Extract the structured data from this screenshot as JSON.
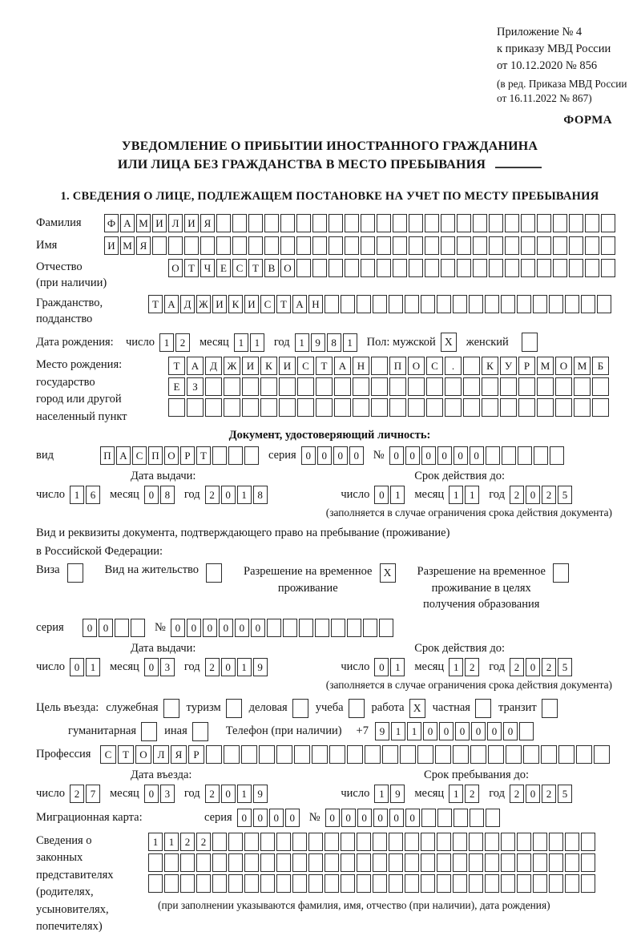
{
  "header": {
    "lines": [
      "Приложение № 4",
      "к приказу МВД России",
      "от 10.12.2020 № 856"
    ],
    "sub_lines": [
      "(в ред. Приказа МВД России",
      "от 16.11.2022 № 867)"
    ],
    "form_label": "ФОРМА"
  },
  "title": {
    "line1": "УВЕДОМЛЕНИЕ О ПРИБЫТИИ ИНОСТРАННОГО ГРАЖДАНИНА",
    "line2": "ИЛИ ЛИЦА БЕЗ ГРАЖДАНСТВА В МЕСТО ПРЕБЫВАНИЯ"
  },
  "section1_heading": "1. СВЕДЕНИЯ О ЛИЦЕ, ПОДЛЕЖАЩЕМ ПОСТАНОВКЕ НА УЧЕТ ПО МЕСТУ ПРЕБЫВАНИЯ",
  "common": {
    "day": "число",
    "month": "месяц",
    "year": "год",
    "series": "серия",
    "number": "№",
    "issue_date": "Дата выдачи:",
    "valid_until": "Срок действия до:",
    "validity_note": "(заполняется в случае ограничения срока действия документа)"
  },
  "surname": {
    "label": "Фамилия",
    "cells": {
      "value": "ФАМИЛИЯ",
      "count": 32
    }
  },
  "given_name": {
    "label": "Имя",
    "cells": {
      "value": "ИМЯ",
      "count": 32
    }
  },
  "patronymic": {
    "label": "Отчество",
    "note": "(при наличии)",
    "cells": {
      "value": "ОТЧЕСТВО",
      "count": 28
    }
  },
  "citizenship": {
    "label1": "Гражданство,",
    "label2": "подданство",
    "cells": {
      "value": "ТАДЖИКИСТАН",
      "count": 29
    }
  },
  "birth": {
    "label": "Дата рождения:",
    "day": {
      "value": "12",
      "count": 2
    },
    "month": {
      "value": "11",
      "count": 2
    },
    "year": {
      "value": "1981",
      "count": 4
    },
    "sex_label": "Пол: мужской",
    "male_checked": "X",
    "female_label": "женский",
    "female_checked": ""
  },
  "birth_place": {
    "label": "Место рождения:",
    "sub1": "государство",
    "sub2": "город или другой",
    "sub3": "населенный пункт",
    "row1": {
      "value": "ТАДЖИКИСТАН ПОС. КУРМОМБ",
      "count": 24
    },
    "row2": {
      "value": "ЕЗ",
      "count": 24
    },
    "row3": {
      "value": "",
      "count": 24
    }
  },
  "identity_doc": {
    "heading": "Документ, удостоверяющий личность:",
    "type_label": "вид",
    "type": {
      "value": "ПАСПОРТ",
      "count": 10
    },
    "series": {
      "value": "0000",
      "count": 4
    },
    "number": {
      "value": "000000",
      "count": 11
    },
    "issue": {
      "day": {
        "value": "16",
        "count": 2
      },
      "month": {
        "value": "08",
        "count": 2
      },
      "year": {
        "value": "2018",
        "count": 4
      }
    },
    "valid": {
      "day": {
        "value": "01",
        "count": 2
      },
      "month": {
        "value": "11",
        "count": 2
      },
      "year": {
        "value": "2025",
        "count": 4
      }
    }
  },
  "residence_doc": {
    "line1": "Вид и реквизиты документа, подтверждающего право на пребывание (проживание)",
    "line2": "в Российской Федерации:",
    "opt1_label": "Виза",
    "opt1_checked": "",
    "opt2_label": "Вид на жительство",
    "opt2_checked": "",
    "opt3_line1": "Разрешение на временное",
    "opt3_line2": "проживание",
    "opt3_checked": "X",
    "opt4_line1": "Разрешение на временное",
    "opt4_line2": "проживание в целях",
    "opt4_line3": "получения образования",
    "opt4_checked": "",
    "series": {
      "value": "00",
      "count": 4
    },
    "number": {
      "value": "000000",
      "count": 14
    },
    "issue": {
      "day": {
        "value": "01",
        "count": 2
      },
      "month": {
        "value": "03",
        "count": 2
      },
      "year": {
        "value": "2019",
        "count": 4
      }
    },
    "valid": {
      "day": {
        "value": "01",
        "count": 2
      },
      "month": {
        "value": "12",
        "count": 2
      },
      "year": {
        "value": "2025",
        "count": 4
      }
    }
  },
  "purpose": {
    "label": "Цель въезда:",
    "opts": [
      {
        "label": "служебная",
        "checked": ""
      },
      {
        "label": "туризм",
        "checked": ""
      },
      {
        "label": "деловая",
        "checked": ""
      },
      {
        "label": "учеба",
        "checked": ""
      },
      {
        "label": "работа",
        "checked": "X"
      },
      {
        "label": "частная",
        "checked": ""
      },
      {
        "label": "транзит",
        "checked": ""
      }
    ],
    "opt_humanitarian": {
      "label": "гуманитарная",
      "checked": ""
    },
    "opt_other": {
      "label": "иная",
      "checked": ""
    },
    "phone_label": "Телефон (при наличии)",
    "phone_prefix": "+7",
    "phone": {
      "value": "911000000",
      "count": 10
    }
  },
  "profession": {
    "label": "Профессия",
    "cells": {
      "value": "СТОЛЯР",
      "count": 29
    }
  },
  "entry": {
    "date_label": "Дата въезда:",
    "stay_label": "Срок пребывания до:",
    "date": {
      "day": {
        "value": "27",
        "count": 2
      },
      "month": {
        "value": "03",
        "count": 2
      },
      "year": {
        "value": "2019",
        "count": 4
      }
    },
    "stay": {
      "day": {
        "value": "19",
        "count": 2
      },
      "month": {
        "value": "12",
        "count": 2
      },
      "year": {
        "value": "2025",
        "count": 4
      }
    }
  },
  "migration_card": {
    "label": "Миграционная карта:",
    "series": {
      "value": "0000",
      "count": 4
    },
    "number": {
      "value": "000000",
      "count": 11
    }
  },
  "representatives": {
    "label_lines": [
      "Сведения о",
      "законных",
      "представителях",
      "(родителях,",
      "усыновителях,",
      "попечителях)"
    ],
    "row1": {
      "value": "1122",
      "count": 28
    },
    "row2": {
      "value": "",
      "count": 28
    },
    "row3": {
      "value": "",
      "count": 28
    },
    "note": "(при заполнении указываются фамилия, имя, отчество (при наличии), дата рождения)"
  }
}
